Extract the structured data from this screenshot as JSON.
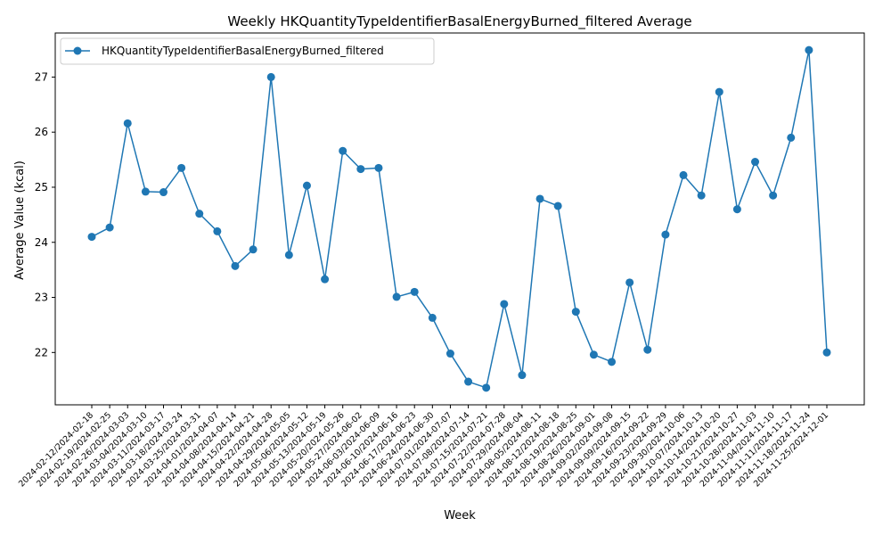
{
  "chart_data": {
    "type": "line",
    "title": "Weekly HKQuantityTypeIdentifierBasalEnergyBurned_filtered Average",
    "xlabel": "Week",
    "ylabel": "Average Value (kcal)",
    "ylim": [
      21.05,
      27.8
    ],
    "yticks": [
      22,
      23,
      24,
      25,
      26,
      27
    ],
    "grid": false,
    "legend_position": "upper left",
    "color": "#1f77b4",
    "categories": [
      "2024-02-12/2024-02-18",
      "2024-02-19/2024-02-25",
      "2024-02-26/2024-03-03",
      "2024-03-04/2024-03-10",
      "2024-03-11/2024-03-17",
      "2024-03-18/2024-03-24",
      "2024-03-25/2024-03-31",
      "2024-04-01/2024-04-07",
      "2024-04-08/2024-04-14",
      "2024-04-15/2024-04-21",
      "2024-04-22/2024-04-28",
      "2024-04-29/2024-05-05",
      "2024-05-06/2024-05-12",
      "2024-05-13/2024-05-19",
      "2024-05-20/2024-05-26",
      "2024-05-27/2024-06-02",
      "2024-06-03/2024-06-09",
      "2024-06-10/2024-06-16",
      "2024-06-17/2024-06-23",
      "2024-06-24/2024-06-30",
      "2024-07-01/2024-07-07",
      "2024-07-08/2024-07-14",
      "2024-07-15/2024-07-21",
      "2024-07-22/2024-07-28",
      "2024-07-29/2024-08-04",
      "2024-08-05/2024-08-11",
      "2024-08-12/2024-08-18",
      "2024-08-19/2024-08-25",
      "2024-08-26/2024-09-01",
      "2024-09-02/2024-09-08",
      "2024-09-09/2024-09-15",
      "2024-09-16/2024-09-22",
      "2024-09-23/2024-09-29",
      "2024-09-30/2024-10-06",
      "2024-10-07/2024-10-13",
      "2024-10-14/2024-10-20",
      "2024-10-21/2024-10-27",
      "2024-10-28/2024-11-03",
      "2024-11-04/2024-11-10",
      "2024-11-11/2024-11-17",
      "2024-11-18/2024-11-24",
      "2024-11-25/2024-12-01"
    ],
    "series": [
      {
        "name": "HKQuantityTypeIdentifierBasalEnergyBurned_filtered",
        "values": [
          24.1,
          24.27,
          26.16,
          24.92,
          24.91,
          25.35,
          24.52,
          24.2,
          23.57,
          23.87,
          27.0,
          23.77,
          25.03,
          23.33,
          25.66,
          25.33,
          25.35,
          23.01,
          23.1,
          22.63,
          21.98,
          21.47,
          21.36,
          22.88,
          21.59,
          24.79,
          24.66,
          22.74,
          21.96,
          21.83,
          23.27,
          22.05,
          24.14,
          25.22,
          24.85,
          26.73,
          24.6,
          25.46,
          24.85,
          25.9,
          27.49,
          22.0
        ]
      }
    ]
  }
}
